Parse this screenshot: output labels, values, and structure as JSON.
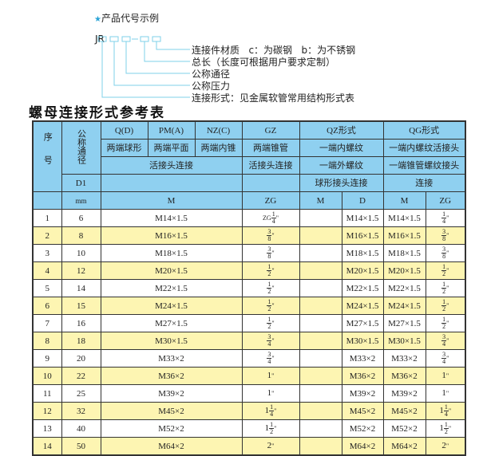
{
  "legend": {
    "title": "产品代号示例",
    "code_prefix": "JR",
    "code_separator": "-",
    "labels": [
      "连接件材质   c：为碳钢   b：为不锈钢",
      "总长（长度可根据用户要求定制）",
      "公称通径",
      "公称压力",
      "连接形式：见金属软管常用结构形式表"
    ],
    "accent_color": "#7fd0ea"
  },
  "table_title": "螺母连接形式参考表",
  "header": {
    "seq": "序号",
    "dn": "公称通径",
    "d1": "D1",
    "mm": "mm",
    "qd": "Q(D)",
    "pma": "PM(A)",
    "nzc": "NZ(C)",
    "gz": "GZ",
    "qz": "QZ形式",
    "qg": "QG形式",
    "qd_desc": "两端球形",
    "pma_desc": "两端平面",
    "nzc_desc": "两端内锥",
    "gz_desc": "两端锥管",
    "qz_desc1": "一端内螺纹",
    "qg_desc1": "一端内螺纹活接头",
    "conn_a": "活接头连接",
    "gz_conn": "活接头连接",
    "qz_desc2": "一端外螺纹",
    "qg_desc2": "一端锥管螺纹接头",
    "qz_desc3": "球形接头连接",
    "qg_desc3": "连接",
    "m": "M",
    "zg": "ZG",
    "qz_m": "M",
    "qz_d": "D",
    "qg_m": "M",
    "qg_zg": "ZG"
  },
  "rows": [
    {
      "no": "1",
      "dn": "6",
      "m": "M14×1.5",
      "zg": {
        "pre": "ZG",
        "whole": "",
        "num": "1",
        "den": "4"
      },
      "qz_m": "",
      "qz_d": "M14×1.5",
      "qg_m": "M14×1.5",
      "qg_zg": {
        "pre": "",
        "whole": "",
        "num": "1",
        "den": "4"
      }
    },
    {
      "no": "2",
      "dn": "8",
      "m": "M16×1.5",
      "zg": {
        "pre": "",
        "whole": "",
        "num": "3",
        "den": "8"
      },
      "qz_m": "",
      "qz_d": "M16×1.5",
      "qg_m": "M16×1.5",
      "qg_zg": {
        "pre": "",
        "whole": "",
        "num": "3",
        "den": "8"
      }
    },
    {
      "no": "3",
      "dn": "10",
      "m": "M18×1.5",
      "zg": {
        "pre": "",
        "whole": "",
        "num": "3",
        "den": "8"
      },
      "qz_m": "",
      "qz_d": "M18×1.5",
      "qg_m": "M18×1.5",
      "qg_zg": {
        "pre": "",
        "whole": "",
        "num": "3",
        "den": "8"
      }
    },
    {
      "no": "4",
      "dn": "12",
      "m": "M20×1.5",
      "zg": {
        "pre": "",
        "whole": "",
        "num": "1",
        "den": "2"
      },
      "qz_m": "",
      "qz_d": "M20×1.5",
      "qg_m": "M20×1.5",
      "qg_zg": {
        "pre": "",
        "whole": "",
        "num": "1",
        "den": "2"
      }
    },
    {
      "no": "5",
      "dn": "14",
      "m": "M22×1.5",
      "zg": {
        "pre": "",
        "whole": "",
        "num": "1",
        "den": "2"
      },
      "qz_m": "",
      "qz_d": "M22×1.5",
      "qg_m": "M22×1.5",
      "qg_zg": {
        "pre": "",
        "whole": "",
        "num": "1",
        "den": "2"
      }
    },
    {
      "no": "6",
      "dn": "15",
      "m": "M24×1.5",
      "zg": {
        "pre": "",
        "whole": "",
        "num": "1",
        "den": "2"
      },
      "qz_m": "",
      "qz_d": "M24×1.5",
      "qg_m": "M24×1.5",
      "qg_zg": {
        "pre": "",
        "whole": "",
        "num": "1",
        "den": "2"
      }
    },
    {
      "no": "7",
      "dn": "16",
      "m": "M27×1.5",
      "zg": {
        "pre": "",
        "whole": "",
        "num": "1",
        "den": "2"
      },
      "qz_m": "",
      "qz_d": "M27×1.5",
      "qg_m": "M27×1.5",
      "qg_zg": {
        "pre": "",
        "whole": "",
        "num": "1",
        "den": "2"
      }
    },
    {
      "no": "8",
      "dn": "18",
      "m": "M30×1.5",
      "zg": {
        "pre": "",
        "whole": "",
        "num": "3",
        "den": "4"
      },
      "qz_m": "",
      "qz_d": "M30×1.5",
      "qg_m": "M30×1.5",
      "qg_zg": {
        "pre": "",
        "whole": "",
        "num": "3",
        "den": "4"
      }
    },
    {
      "no": "9",
      "dn": "20",
      "m": "M33×2",
      "zg": {
        "pre": "",
        "whole": "",
        "num": "3",
        "den": "4"
      },
      "qz_m": "",
      "qz_d": "M33×2",
      "qg_m": "M33×2",
      "qg_zg": {
        "pre": "",
        "whole": "",
        "num": "3",
        "den": "4"
      }
    },
    {
      "no": "10",
      "dn": "22",
      "m": "M36×2",
      "zg": {
        "pre": "",
        "whole": "1",
        "num": "",
        "den": ""
      },
      "qz_m": "",
      "qz_d": "M36×2",
      "qg_m": "M36×2",
      "qg_zg": {
        "pre": "",
        "whole": "1",
        "num": "",
        "den": ""
      }
    },
    {
      "no": "11",
      "dn": "25",
      "m": "M39×2",
      "zg": {
        "pre": "",
        "whole": "1",
        "num": "",
        "den": ""
      },
      "qz_m": "",
      "qz_d": "M39×2",
      "qg_m": "M39×2",
      "qg_zg": {
        "pre": "",
        "whole": "1",
        "num": "",
        "den": ""
      }
    },
    {
      "no": "12",
      "dn": "32",
      "m": "M45×2",
      "zg": {
        "pre": "",
        "whole": "1",
        "num": "1",
        "den": "4"
      },
      "qz_m": "",
      "qz_d": "M45×2",
      "qg_m": "M45×2",
      "qg_zg": {
        "pre": "",
        "whole": "1",
        "num": "1",
        "den": "4"
      }
    },
    {
      "no": "13",
      "dn": "40",
      "m": "M52×2",
      "zg": {
        "pre": "",
        "whole": "1",
        "num": "1",
        "den": "2"
      },
      "qz_m": "",
      "qz_d": "M52×2",
      "qg_m": "M52×2",
      "qg_zg": {
        "pre": "",
        "whole": "1",
        "num": "1",
        "den": "2"
      }
    },
    {
      "no": "14",
      "dn": "50",
      "m": "M64×2",
      "zg": {
        "pre": "",
        "whole": "2",
        "num": "",
        "den": ""
      },
      "qz_m": "",
      "qz_d": "M64×2",
      "qg_m": "M64×2",
      "qg_zg": {
        "pre": "",
        "whole": "2",
        "num": "",
        "den": ""
      }
    }
  ],
  "colors": {
    "header_bg": "#8fd0f0",
    "row_alt_bg": "#fdf5b2",
    "border": "#333333"
  }
}
